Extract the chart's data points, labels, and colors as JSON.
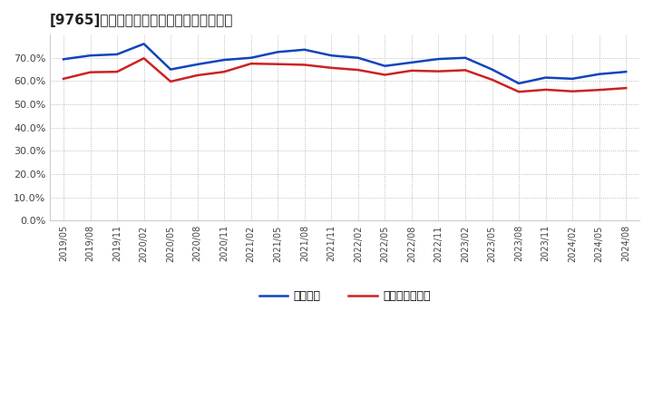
{
  "title": "[9765]　固定比率、固定長期適合率の推移",
  "ylim": [
    0.0,
    0.8
  ],
  "yticks": [
    0.0,
    0.1,
    0.2,
    0.3,
    0.4,
    0.5,
    0.6,
    0.7
  ],
  "background_color": "#ffffff",
  "plot_bg_color": "#ffffff",
  "grid_color": "#aaaaaa",
  "line1_color": "#1144bb",
  "line2_color": "#cc2222",
  "line1_label": "固定比率",
  "line2_label": "固定長期適合率",
  "x_labels": [
    "2019/05",
    "2019/08",
    "2019/11",
    "2020/02",
    "2020/05",
    "2020/08",
    "2020/11",
    "2021/02",
    "2021/05",
    "2021/08",
    "2021/11",
    "2022/02",
    "2022/05",
    "2022/08",
    "2022/11",
    "2023/02",
    "2023/05",
    "2023/08",
    "2023/11",
    "2024/02",
    "2024/05",
    "2024/08"
  ],
  "line1_values": [
    0.694,
    0.71,
    0.715,
    0.76,
    0.65,
    0.672,
    0.691,
    0.7,
    0.725,
    0.735,
    0.71,
    0.7,
    0.665,
    0.68,
    0.695,
    0.7,
    0.65,
    0.59,
    0.615,
    0.61,
    0.63,
    0.64
  ],
  "line2_values": [
    0.61,
    0.638,
    0.64,
    0.698,
    0.598,
    0.625,
    0.64,
    0.675,
    0.673,
    0.67,
    0.657,
    0.648,
    0.627,
    0.645,
    0.642,
    0.647,
    0.606,
    0.554,
    0.563,
    0.556,
    0.562,
    0.57
  ]
}
